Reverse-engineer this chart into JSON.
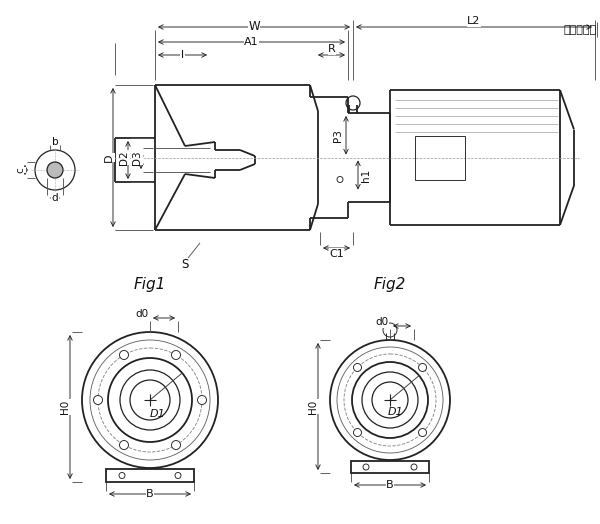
{
  "bg_color": "#ffffff",
  "line_color": "#222222",
  "dim_color": "#222222",
  "text_color": "#111111",
  "fig1_label": "Fig1",
  "fig2_label": "Fig2",
  "ann_W": "W",
  "ann_A1": "A1",
  "ann_l": "l",
  "ann_R": "R",
  "ann_L2": "L2",
  "ann_jdj": "按电机尺寸",
  "ann_D": "D",
  "ann_D2": "D2",
  "ann_D3": "D3",
  "ann_S": "S",
  "ann_P3": "P3",
  "ann_h1": "h1",
  "ann_C1": "C1",
  "ann_b": "b",
  "ann_c": "c",
  "ann_d": "d",
  "ann_d0": "d0",
  "ann_D1": "D1",
  "ann_H0": "H0",
  "ann_B": "B"
}
